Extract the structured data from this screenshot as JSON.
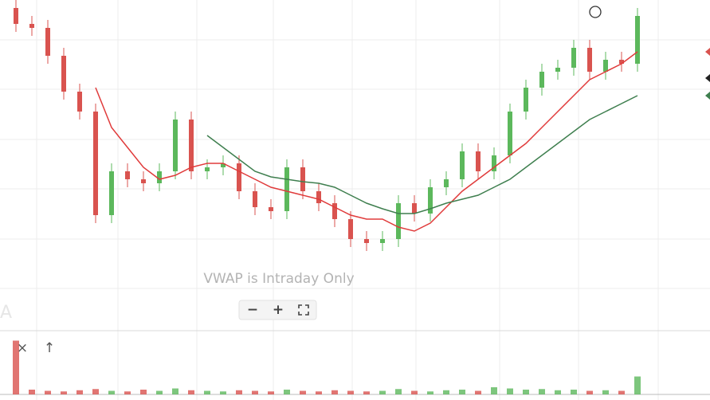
{
  "chart_data": {
    "type": "candlestick",
    "notice": "VWAP is Intraday Only",
    "watermark": "A",
    "controls": [
      "−",
      "+"
    ],
    "pane_buttons": [
      "×",
      "↑"
    ],
    "ylim": [
      0,
      41
    ],
    "open": [
      40,
      38,
      37.5,
      34,
      29.5,
      27,
      14,
      19.5,
      18.5,
      18,
      19.5,
      26,
      19.5,
      20,
      20.5,
      17,
      15,
      14.5,
      20,
      17,
      15.5,
      13.5,
      11,
      10.5,
      11,
      15.5,
      14.2,
      17.5,
      18.5,
      22,
      19.5,
      21.5,
      27,
      30,
      32,
      32.5,
      35,
      32,
      33.5,
      33
    ],
    "high": [
      41,
      39,
      38.5,
      35,
      30.5,
      28,
      20.5,
      20.5,
      19.5,
      20.5,
      27,
      27,
      21,
      21.5,
      21.5,
      18,
      16,
      21,
      21,
      18,
      16.5,
      14.5,
      12,
      12,
      16.5,
      16.5,
      18.5,
      19.5,
      23,
      23,
      22.5,
      28,
      31,
      33,
      33.5,
      36,
      36,
      34.5,
      34.5,
      40
    ],
    "low": [
      37,
      36.5,
      33,
      28.5,
      26,
      13,
      13,
      17.5,
      17,
      17,
      18.5,
      18.5,
      18.5,
      19,
      16,
      14,
      13.5,
      13.5,
      16,
      14.5,
      12.5,
      10,
      9.5,
      9.5,
      10,
      13.2,
      13.2,
      16.5,
      17.5,
      18.5,
      18.5,
      20.5,
      26,
      29,
      31,
      31.5,
      31,
      31,
      32,
      32
    ],
    "close": [
      38,
      37.5,
      34,
      29.5,
      27,
      14,
      19.5,
      18.5,
      18,
      19.5,
      26,
      19.5,
      20,
      20.5,
      17,
      15,
      14.5,
      20,
      17,
      15.5,
      13.5,
      11,
      10.5,
      11,
      15.5,
      14.2,
      17.5,
      18.5,
      22,
      19.5,
      21.5,
      27,
      30,
      32,
      32.5,
      35,
      32,
      33.5,
      33,
      39
    ],
    "up_color": "#5cb85c",
    "down_color": "#d9534f",
    "lines": [
      {
        "color": "#e03b3b",
        "values": [
          null,
          null,
          null,
          null,
          null,
          30,
          25,
          22.5,
          20,
          18.5,
          19,
          20,
          20.5,
          20.5,
          19.5,
          18.5,
          17.5,
          17,
          16.5,
          16,
          15,
          14,
          13.5,
          13.5,
          12.5,
          12,
          13,
          15,
          17,
          18.5,
          20,
          21.5,
          23,
          25,
          27,
          29,
          31,
          32,
          33,
          34.5
        ]
      },
      {
        "color": "#3f7f4f",
        "values": [
          null,
          null,
          null,
          null,
          null,
          null,
          null,
          null,
          null,
          null,
          null,
          null,
          24,
          22.5,
          21,
          19.5,
          18.8,
          18.5,
          18.2,
          18,
          17.5,
          16.5,
          15.5,
          14.8,
          14.2,
          14.2,
          14.8,
          15.5,
          16,
          16.5,
          17.5,
          18.5,
          20,
          21.5,
          23,
          24.5,
          26,
          27,
          28,
          29
        ]
      }
    ],
    "volume": [
      90,
      8,
      6,
      5,
      7,
      9,
      6,
      5,
      8,
      6,
      10,
      7,
      6,
      5,
      7,
      6,
      5,
      8,
      6,
      5,
      7,
      6,
      5,
      6,
      9,
      6,
      5,
      7,
      8,
      6,
      12,
      10,
      8,
      9,
      7,
      8,
      6,
      7,
      6,
      30
    ],
    "volume_ylim": [
      0,
      100
    ]
  }
}
